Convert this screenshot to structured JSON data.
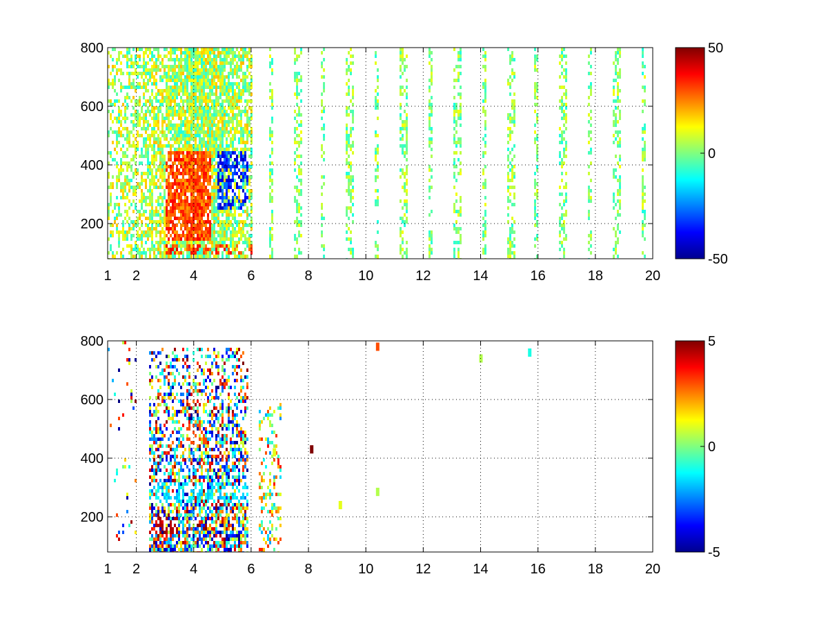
{
  "figure": {
    "colormap": "jet",
    "colors": {
      "background": "#ffffff",
      "axes": "#000000",
      "jet_stops": [
        "#00008f",
        "#0000ff",
        "#00ffff",
        "#ffff00",
        "#ff0000",
        "#800000"
      ]
    }
  },
  "chart_data": [
    {
      "type": "heatmap",
      "title": "",
      "xlabel": "",
      "ylabel": "",
      "xlim": [
        1,
        20
      ],
      "ylim": [
        80,
        800
      ],
      "xticks": [
        1,
        2,
        4,
        6,
        8,
        10,
        12,
        14,
        16,
        18,
        20
      ],
      "xtick_labels": [
        "1",
        "2",
        "4",
        "6",
        "8",
        "10",
        "12",
        "14",
        "16",
        "18",
        "20"
      ],
      "yticks": [
        200,
        400,
        600,
        800
      ],
      "ytick_labels": [
        "200",
        "400",
        "600",
        "800"
      ],
      "grid": true,
      "colorbar": {
        "range": [
          -50,
          50
        ],
        "ticks": [
          50,
          0,
          -50
        ],
        "tick_labels": [
          "50",
          "0",
          "-50"
        ]
      },
      "pattern": {
        "dense_x": [
          1,
          6
        ],
        "dense_center_x": 4.2,
        "strong_negative_region": {
          "x": [
            4.8,
            5.9
          ],
          "y": [
            250,
            450
          ],
          "value": -45
        },
        "strong_positive_region": {
          "x": [
            3.0,
            4.6
          ],
          "y": [
            150,
            450
          ],
          "value": 35
        },
        "sparse_x": [
          6,
          20
        ],
        "sparse_value_range": [
          -10,
          12
        ],
        "near_surface_band": {
          "y": [
            100,
            140
          ],
          "value": 40
        }
      }
    },
    {
      "type": "heatmap",
      "title": "",
      "xlabel": "",
      "ylabel": "",
      "xlim": [
        1,
        20
      ],
      "ylim": [
        80,
        800
      ],
      "xticks": [
        1,
        2,
        4,
        6,
        8,
        10,
        12,
        14,
        16,
        18,
        20
      ],
      "xtick_labels": [
        "1",
        "2",
        "4",
        "6",
        "8",
        "10",
        "12",
        "14",
        "16",
        "18",
        "20"
      ],
      "yticks": [
        200,
        400,
        600,
        800
      ],
      "ytick_labels": [
        "200",
        "400",
        "600",
        "800"
      ],
      "grid": true,
      "colorbar": {
        "range": [
          -5,
          5
        ],
        "ticks": [
          5,
          0,
          -5
        ],
        "tick_labels": [
          "5",
          "0",
          "-5"
        ]
      },
      "pattern": {
        "dense_x": [
          2.4,
          5.9
        ],
        "dense_y_max": 780,
        "cyan_band": {
          "y": [
            250,
            320
          ],
          "value": -1.5
        },
        "red_patch": {
          "x": [
            2.6,
            3.4
          ],
          "y": [
            150,
            200
          ],
          "value": 4.5
        },
        "orange_patch": {
          "x": [
            3.6,
            4.4
          ],
          "y": [
            450,
            520
          ],
          "value": 3
        },
        "isolated_cells": [
          {
            "x": 6.8,
            "y": 420,
            "value": 1
          },
          {
            "x": 8.1,
            "y": 430,
            "value": 5
          },
          {
            "x": 10.4,
            "y": 780,
            "value": 3
          },
          {
            "x": 14.0,
            "y": 740,
            "value": 0.5
          },
          {
            "x": 15.7,
            "y": 760,
            "value": -1
          },
          {
            "x": 10.4,
            "y": 285,
            "value": 0.5
          },
          {
            "x": 9.1,
            "y": 240,
            "value": 1
          }
        ]
      }
    }
  ]
}
